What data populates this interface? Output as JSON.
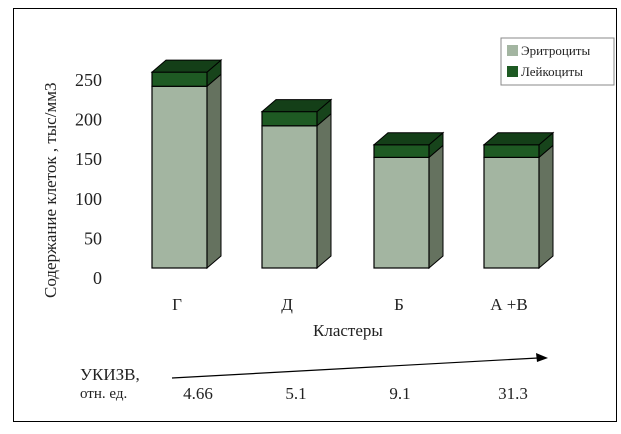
{
  "chart_data": {
    "type": "bar",
    "stacked": true,
    "three_d": true,
    "categories": [
      "Г",
      "Д",
      "Б",
      "А +В"
    ],
    "series": [
      {
        "name": "Эритроциты",
        "values": [
          230,
          180,
          140,
          140
        ],
        "color": "#a3b5a1"
      },
      {
        "name": "Лейкоциты",
        "values": [
          18,
          18,
          16,
          16
        ],
        "color": "#1e5a23"
      }
    ],
    "xlabel": "Кластеры",
    "ylabel": "Содержание  клеток , тыс/мм3",
    "ylim": [
      0,
      250
    ],
    "yticks": [
      0,
      50,
      100,
      150,
      200,
      250
    ],
    "grid": false,
    "legend": "top-right"
  },
  "index": {
    "label_line1": "УКИЗВ,",
    "label_line2": "отн. ед.",
    "values": [
      "4.66",
      "5.1",
      "9.1",
      "31.3"
    ]
  }
}
